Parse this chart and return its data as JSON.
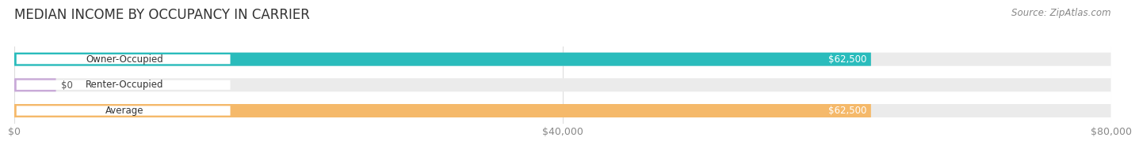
{
  "title": "MEDIAN INCOME BY OCCUPANCY IN CARRIER",
  "source": "Source: ZipAtlas.com",
  "categories": [
    "Owner-Occupied",
    "Renter-Occupied",
    "Average"
  ],
  "values": [
    62500,
    0,
    62500
  ],
  "bar_colors": [
    "#2abcbc",
    "#c9aad8",
    "#f5b96a"
  ],
  "bar_labels": [
    "$62,500",
    "$0",
    "$62,500"
  ],
  "xlim": [
    0,
    80000
  ],
  "xticks": [
    0,
    40000,
    80000
  ],
  "xtick_labels": [
    "$0",
    "$40,000",
    "$80,000"
  ],
  "page_bg_color": "#ffffff",
  "bar_track_color": "#ebebeb",
  "title_fontsize": 12,
  "source_fontsize": 8.5,
  "label_fontsize": 8.5,
  "tick_fontsize": 9
}
